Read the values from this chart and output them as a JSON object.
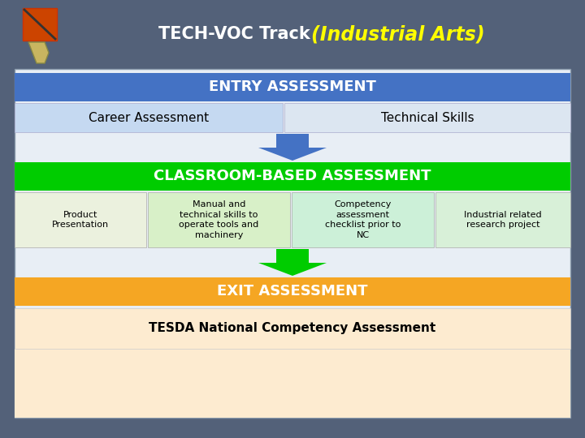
{
  "title_normal": "TECH-VOC Track ",
  "title_italic": "(Industrial Arts)",
  "title_normal_color": "#ffffff",
  "title_italic_color": "#ffff00",
  "bg_color": "#536179",
  "entry_bar_color": "#4472c4",
  "entry_text": "ENTRY ASSESSMENT",
  "entry_text_color": "#ffffff",
  "career_box_color": "#c5d9f1",
  "career_text": "Career Assessment",
  "skills_box_color": "#dce6f1",
  "skills_text": "Technical Skills",
  "sub_box_text_color": "#000000",
  "arrow_down_color1": "#4472c4",
  "classroom_bar_color": "#00cc00",
  "classroom_text": "CLASSROOM-BASED ASSESSMENT",
  "classroom_text_color": "#ffffff",
  "cell1_color": "#ebf1de",
  "cell1_text": "Product\nPresentation",
  "cell2_color": "#d8f0c8",
  "cell2_text": "Manual and\ntechnical skills to\noperate tools and\nmachinery",
  "cell3_color": "#ccf0d8",
  "cell3_text": "Competency\nassessment\nchecklist prior to\nNC",
  "cell4_color": "#d8f0d8",
  "cell4_text": "Industrial related\nresearch project",
  "arrow_down_color2": "#00cc00",
  "exit_bar_color": "#f5a623",
  "exit_text": "EXIT ASSESSMENT",
  "exit_text_color": "#ffffff",
  "tesda_box_color": "#fdebd0",
  "tesda_text": "TESDA National Competency Assessment",
  "tesda_text_color": "#000000",
  "main_bg": "#dce6f1",
  "content_bg": "#e8eef5"
}
